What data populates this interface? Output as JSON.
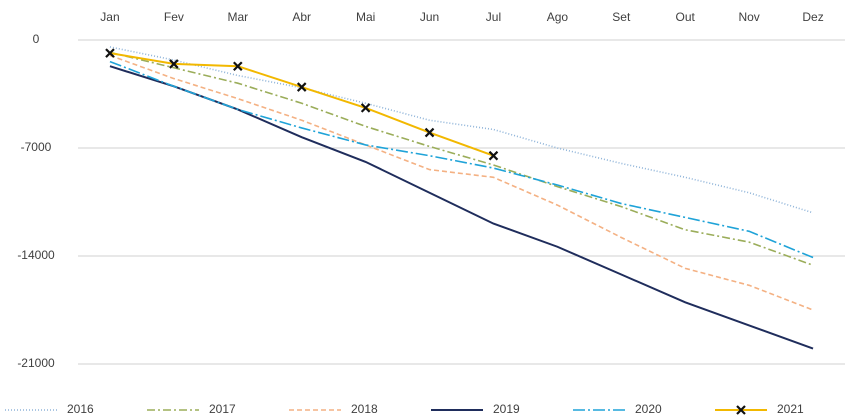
{
  "chart_data": {
    "type": "line",
    "categories": [
      "Jan",
      "Fev",
      "Mar",
      "Abr",
      "Mai",
      "Jun",
      "Jul",
      "Ago",
      "Set",
      "Out",
      "Nov",
      "Dez"
    ],
    "ylim": [
      -21000,
      0
    ],
    "yticks": [
      0,
      -7000,
      -14000,
      -21000
    ],
    "grid": true,
    "legend": "bottom",
    "series": [
      {
        "name": "2016",
        "color": "#8fb4d9",
        "dash": "1,2",
        "values": [
          -450,
          -1300,
          -2300,
          -3100,
          -4100,
          -5200,
          -5800,
          -7000,
          -8000,
          -8900,
          -9900,
          -11200
        ]
      },
      {
        "name": "2017",
        "color": "#9bad5a",
        "dash": "8,3,2,3",
        "values": [
          -800,
          -1800,
          -2800,
          -4100,
          -5600,
          -6900,
          -8100,
          -9500,
          -10800,
          -12300,
          -13100,
          -14600
        ]
      },
      {
        "name": "2018",
        "color": "#f4b183",
        "dash": "5,3",
        "values": [
          -1000,
          -2500,
          -3800,
          -5200,
          -6800,
          -8400,
          -8900,
          -10700,
          -12800,
          -14800,
          -15900,
          -17500
        ]
      },
      {
        "name": "2019",
        "color": "#1f2d5c",
        "dash": "",
        "values": [
          -1700,
          -3000,
          -4500,
          -6300,
          -7900,
          -9900,
          -11900,
          -13400,
          -15200,
          -17000,
          -18500,
          -20000
        ]
      },
      {
        "name": "2020",
        "color": "#1fa3d8",
        "dash": "12,3,2,3",
        "values": [
          -1400,
          -3000,
          -4500,
          -5700,
          -6800,
          -7500,
          -8300,
          -9400,
          -10600,
          -11500,
          -12400,
          -14100
        ]
      },
      {
        "name": "2021",
        "color": "#f2b800",
        "dash": "",
        "marker": "x",
        "values": [
          -850,
          -1550,
          -1700,
          -3050,
          -4400,
          -6000,
          -7500,
          null,
          null,
          null,
          null,
          null
        ]
      }
    ]
  }
}
